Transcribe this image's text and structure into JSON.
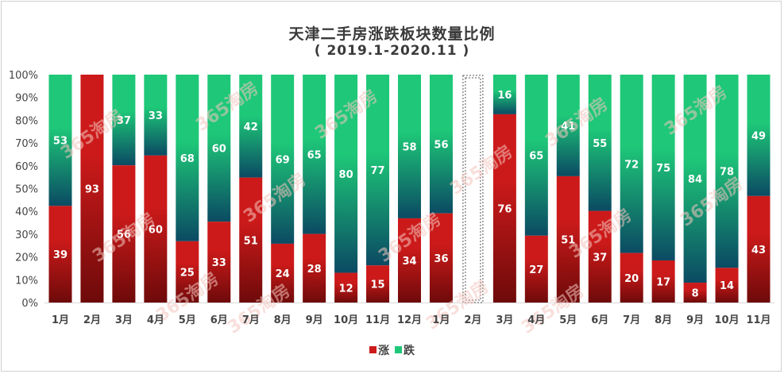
{
  "chart_data": {
    "type": "bar",
    "stacked": "percent",
    "title": "天津二手房涨跌板块数量比例",
    "subtitle": "( 2019.1-2020.11 )",
    "categories": [
      "1月",
      "2月",
      "3月",
      "4月",
      "5月",
      "6月",
      "7月",
      "8月",
      "9月",
      "10月",
      "11月",
      "12月",
      "1月",
      "2月",
      "3月",
      "4月",
      "5月",
      "6月",
      "7月",
      "8月",
      "9月",
      "10月",
      "11月"
    ],
    "series": [
      {
        "name": "涨",
        "values": [
          39,
          93,
          56,
          60,
          25,
          33,
          51,
          24,
          28,
          12,
          15,
          34,
          36,
          null,
          76,
          27,
          51,
          37,
          20,
          17,
          8,
          14,
          43
        ]
      },
      {
        "name": "跌",
        "values": [
          53,
          0,
          37,
          33,
          68,
          60,
          42,
          69,
          65,
          80,
          77,
          58,
          56,
          null,
          16,
          65,
          41,
          55,
          72,
          75,
          84,
          78,
          49
        ]
      }
    ],
    "colors": {
      "up": "#cc1a1a",
      "up_dark": "#6e0a0a",
      "down": "#1ec878",
      "down_dark": "#0b4a63"
    },
    "yticks": [
      "0%",
      "10%",
      "20%",
      "30%",
      "40%",
      "50%",
      "60%",
      "70%",
      "80%",
      "90%",
      "100%"
    ],
    "ylim": [
      0,
      100
    ],
    "legend": [
      "涨",
      "跌"
    ],
    "watermark": "365淘房"
  }
}
